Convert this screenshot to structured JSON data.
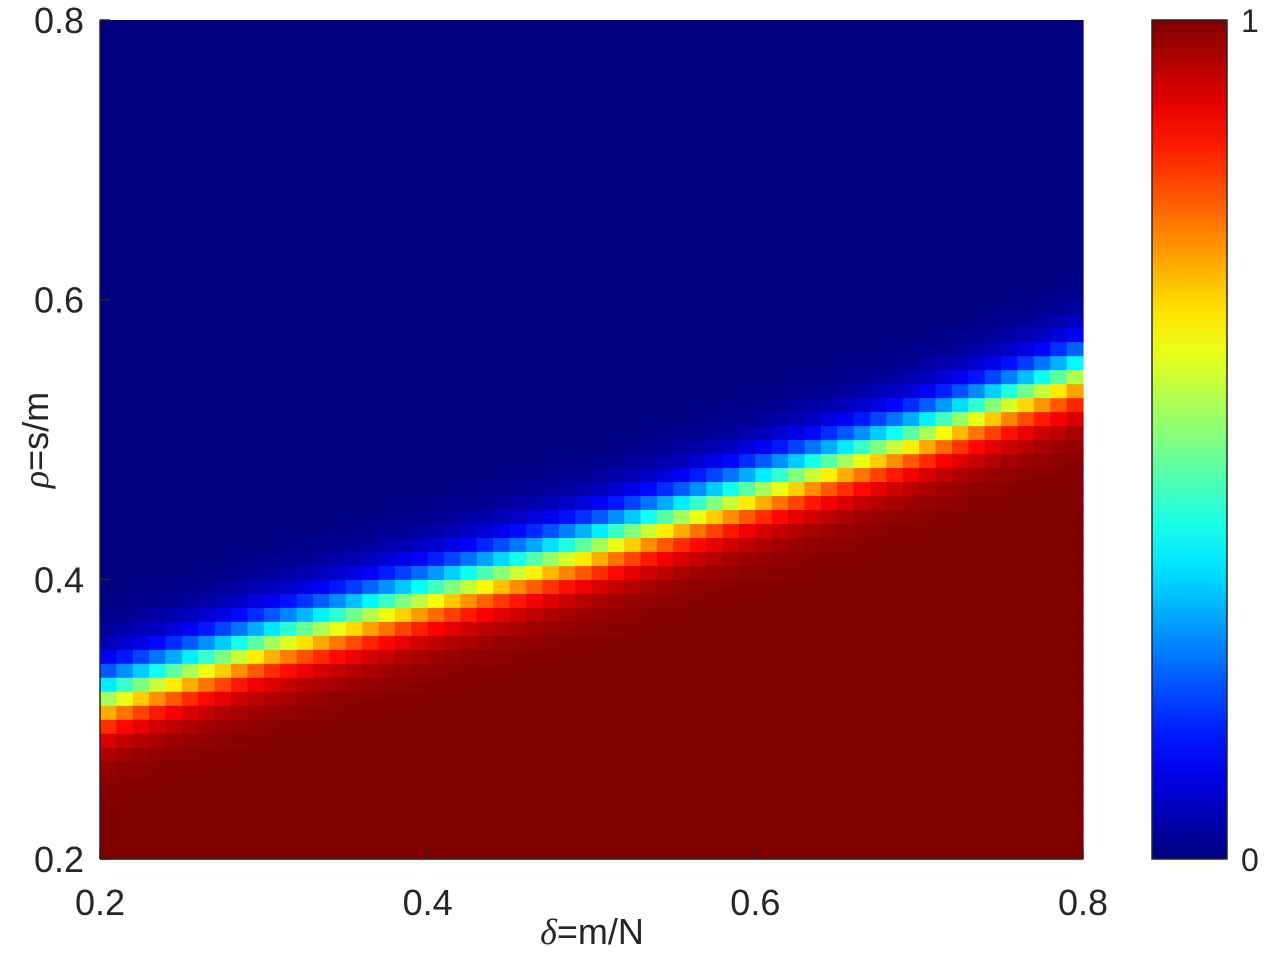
{
  "chart_data": {
    "type": "heatmap",
    "title": "",
    "xlabel_symbol": "δ",
    "xlabel_text": "=m/N",
    "ylabel_symbol": "ρ",
    "ylabel_text": "=s/m",
    "xlim": [
      0.2,
      0.8
    ],
    "ylim": [
      0.2,
      0.8
    ],
    "xticks": [
      "0.2",
      "0.4",
      "0.6",
      "0.8"
    ],
    "yticks": [
      "0.2",
      "0.4",
      "0.6",
      "0.8"
    ],
    "grid": {
      "nx": 60,
      "ny": 60
    },
    "transition_curve": {
      "x": [
        0.2,
        0.3,
        0.4,
        0.5,
        0.6,
        0.7,
        0.8
      ],
      "rho_50": [
        0.315,
        0.355,
        0.39,
        0.425,
        0.465,
        0.505,
        0.55
      ]
    },
    "transition_width": 0.025,
    "colormap": "jet",
    "colorbar": {
      "min": 0,
      "max": 1,
      "ticks": [
        "0",
        "1"
      ]
    }
  }
}
